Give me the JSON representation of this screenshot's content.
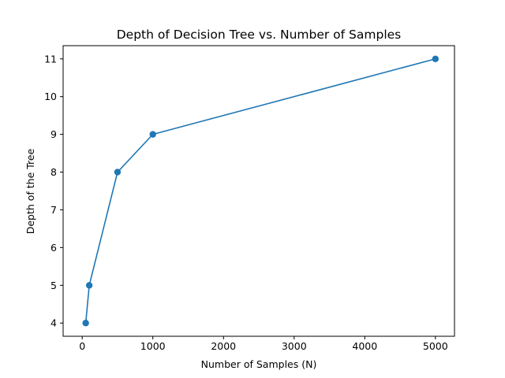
{
  "chart_data": {
    "type": "line",
    "title": "Depth of Decision Tree vs. Number of Samples",
    "xlabel": "Number of Samples (N)",
    "ylabel": "Depth of the Tree",
    "xlim": [
      -270,
      5270
    ],
    "ylim": [
      3.65,
      11.35
    ],
    "xticks": [
      0,
      1000,
      2000,
      3000,
      4000,
      5000
    ],
    "yticks": [
      4,
      5,
      6,
      7,
      8,
      9,
      10,
      11
    ],
    "grid": false,
    "marker": "circle",
    "color": "#1f77b4",
    "series": [
      {
        "x": [
          50,
          100,
          500,
          1000,
          5000
        ],
        "y": [
          4,
          5,
          8,
          9,
          11
        ]
      }
    ]
  }
}
